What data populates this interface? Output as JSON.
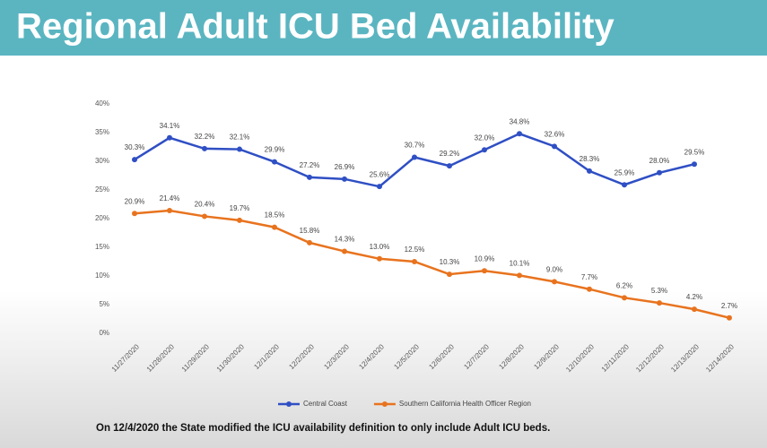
{
  "chart_data": {
    "type": "line",
    "title": "Regional Adult ICU Bed Availability",
    "categories": [
      "11/27/2020",
      "11/28/2020",
      "11/29/2020",
      "11/30/2020",
      "12/1/2020",
      "12/2/2020",
      "12/3/2020",
      "12/4/2020",
      "12/5/2020",
      "12/6/2020",
      "12/7/2020",
      "12/8/2020",
      "12/9/2020",
      "12/10/2020",
      "12/11/2020",
      "12/12/2020",
      "12/13/2020",
      "12/14/2020"
    ],
    "series": [
      {
        "name": "Central Coast",
        "color": "#2f4fc4",
        "values": [
          30.3,
          34.1,
          32.2,
          32.1,
          29.9,
          27.2,
          26.9,
          25.6,
          30.7,
          29.2,
          32.0,
          34.8,
          32.6,
          28.3,
          25.9,
          28.0,
          29.5,
          null
        ],
        "value_labels": [
          "30.3%",
          "34.1%",
          "32.2%",
          "32.1%",
          "29.9%",
          "27.2%",
          "26.9%",
          "25.6%",
          "30.7%",
          "29.2%",
          "32.0%",
          "34.8%",
          "32.6%",
          "28.3%",
          "25.9%",
          "28.0%",
          "29.5%",
          null
        ]
      },
      {
        "name": "Southern California Health Officer Region",
        "color": "#e8731e",
        "values": [
          20.9,
          21.4,
          20.4,
          19.7,
          18.5,
          15.8,
          14.3,
          13.0,
          12.5,
          10.3,
          10.9,
          10.1,
          9.0,
          7.7,
          6.2,
          5.3,
          4.2,
          2.7
        ],
        "value_labels": [
          "20.9%",
          "21.4%",
          "20.4%",
          "19.7%",
          "18.5%",
          "15.8%",
          "14.3%",
          "13.0%",
          "12.5%",
          "10.3%",
          "10.9%",
          "10.1%",
          "9.0%",
          "7.7%",
          "6.2%",
          "5.3%",
          "4.2%",
          "2.7%"
        ]
      }
    ],
    "ylim": [
      0,
      40
    ],
    "yticks": [
      {
        "value": 0,
        "label": "0%"
      },
      {
        "value": 5,
        "label": "5%"
      },
      {
        "value": 10,
        "label": "10%"
      },
      {
        "value": 15,
        "label": "15%"
      },
      {
        "value": 20,
        "label": "20%"
      },
      {
        "value": 25,
        "label": "25%"
      },
      {
        "value": 30,
        "label": "30%"
      },
      {
        "value": 35,
        "label": "35%"
      },
      {
        "value": 40,
        "label": "40%"
      }
    ],
    "grid": false,
    "legend": "bottom",
    "note": "On 12/4/2020 the State modified the ICU availability definition to only include Adult ICU beds."
  }
}
